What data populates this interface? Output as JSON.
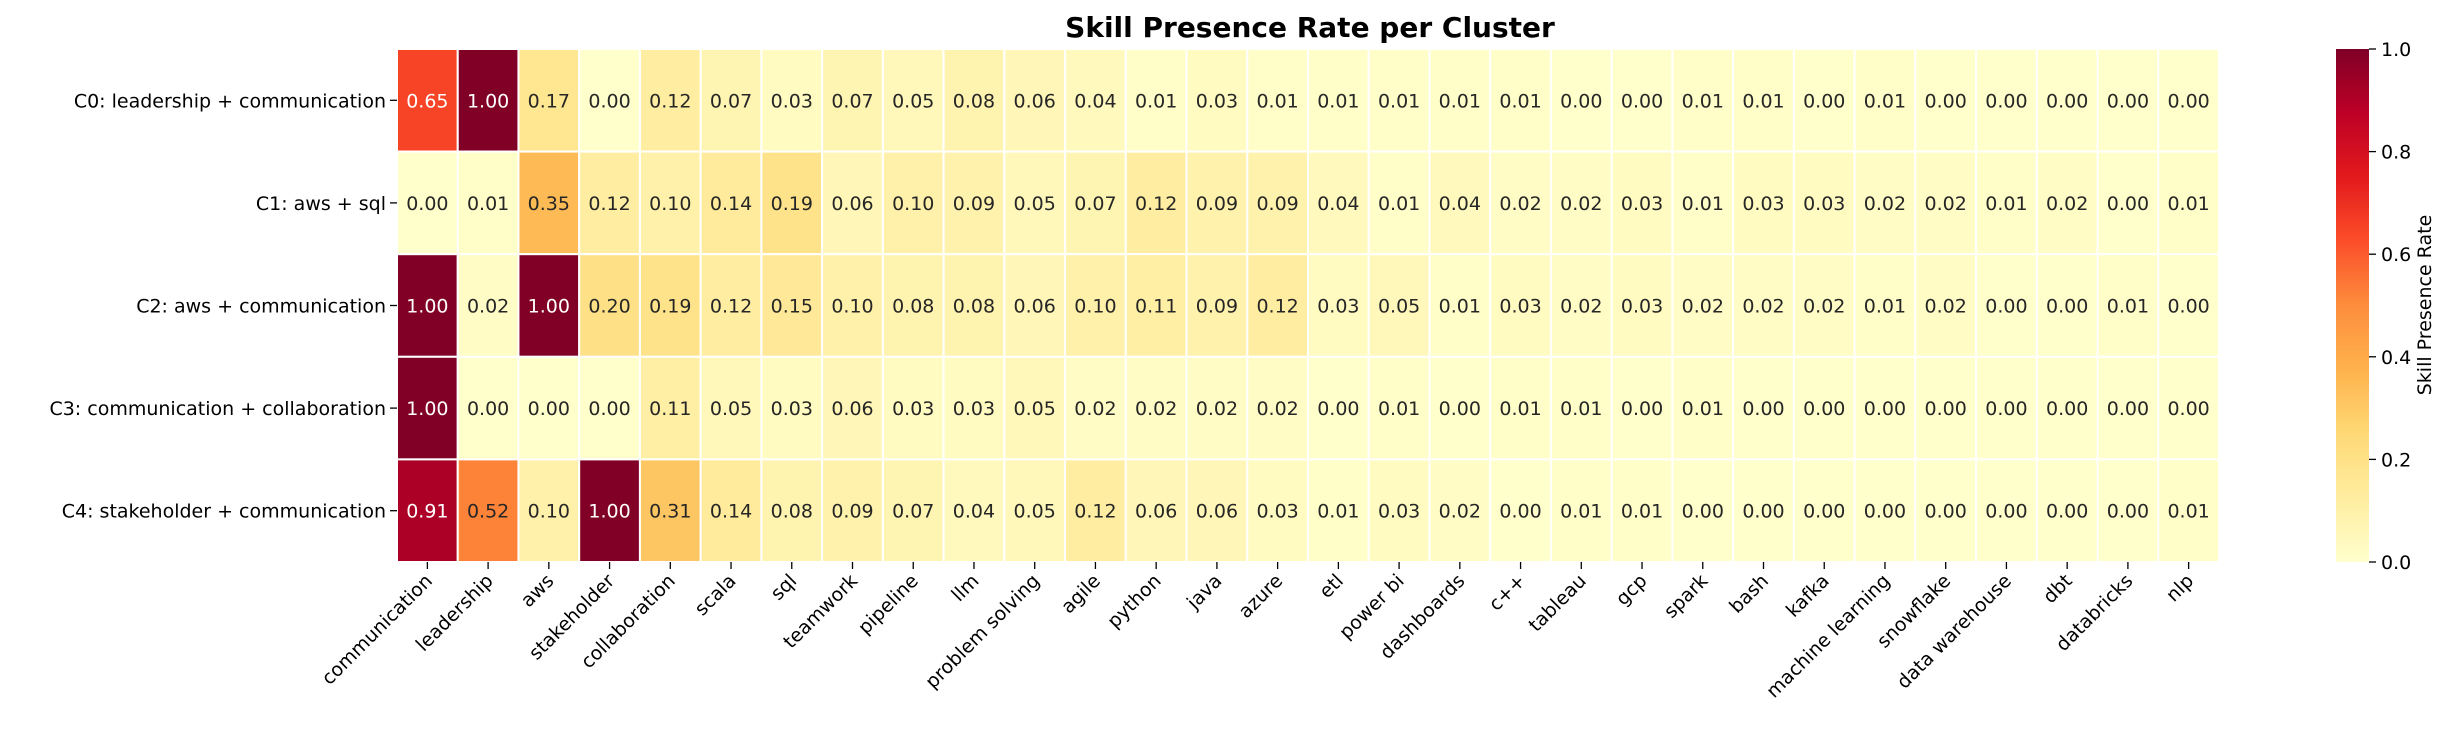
{
  "chart_data": {
    "type": "heatmap",
    "title": "Skill Presence Rate per Cluster",
    "rows": [
      "C0: leadership + communication",
      "C1: aws + sql",
      "C2: aws + communication",
      "C3: communication + collaboration",
      "C4: stakeholder + communication"
    ],
    "columns": [
      "communication",
      "leadership",
      "aws",
      "stakeholder",
      "collaboration",
      "scala",
      "sql",
      "teamwork",
      "pipeline",
      "llm",
      "problem solving",
      "agile",
      "python",
      "java",
      "azure",
      "etl",
      "power bi",
      "dashboards",
      "c++",
      "tableau",
      "gcp",
      "spark",
      "bash",
      "kafka",
      "machine learning",
      "snowflake",
      "data warehouse",
      "dbt",
      "databricks",
      "nlp"
    ],
    "values": [
      [
        0.65,
        1.0,
        0.17,
        0.0,
        0.12,
        0.07,
        0.03,
        0.07,
        0.05,
        0.08,
        0.06,
        0.04,
        0.01,
        0.03,
        0.01,
        0.01,
        0.01,
        0.01,
        0.01,
        0.0,
        0.0,
        0.01,
        0.01,
        0.0,
        0.01,
        0.0,
        0.0,
        0.0,
        0.0,
        0.0
      ],
      [
        0.0,
        0.01,
        0.35,
        0.12,
        0.1,
        0.14,
        0.19,
        0.06,
        0.1,
        0.09,
        0.05,
        0.07,
        0.12,
        0.09,
        0.09,
        0.04,
        0.01,
        0.04,
        0.02,
        0.02,
        0.03,
        0.01,
        0.03,
        0.03,
        0.02,
        0.02,
        0.01,
        0.02,
        0.0,
        0.01
      ],
      [
        1.0,
        0.02,
        1.0,
        0.2,
        0.19,
        0.12,
        0.15,
        0.1,
        0.08,
        0.08,
        0.06,
        0.1,
        0.11,
        0.09,
        0.12,
        0.03,
        0.05,
        0.01,
        0.03,
        0.02,
        0.03,
        0.02,
        0.02,
        0.02,
        0.01,
        0.02,
        0.0,
        0.0,
        0.01,
        0.0
      ],
      [
        1.0,
        0.0,
        0.0,
        0.0,
        0.11,
        0.05,
        0.03,
        0.06,
        0.03,
        0.03,
        0.05,
        0.02,
        0.02,
        0.02,
        0.02,
        0.0,
        0.01,
        0.0,
        0.01,
        0.01,
        0.0,
        0.01,
        0.0,
        0.0,
        0.0,
        0.0,
        0.0,
        0.0,
        0.0,
        0.0
      ],
      [
        0.91,
        0.52,
        0.1,
        1.0,
        0.31,
        0.14,
        0.08,
        0.09,
        0.07,
        0.04,
        0.05,
        0.12,
        0.06,
        0.06,
        0.03,
        0.01,
        0.03,
        0.02,
        0.0,
        0.01,
        0.01,
        0.0,
        0.0,
        0.0,
        0.0,
        0.0,
        0.0,
        0.0,
        0.0,
        0.01
      ]
    ],
    "colormap": "YlOrRd",
    "vmin": 0.0,
    "vmax": 1.0,
    "colorbar": {
      "label": "Skill Presence Rate",
      "ticks": [
        "0.0",
        "0.2",
        "0.4",
        "0.6",
        "0.8",
        "1.0"
      ]
    }
  }
}
